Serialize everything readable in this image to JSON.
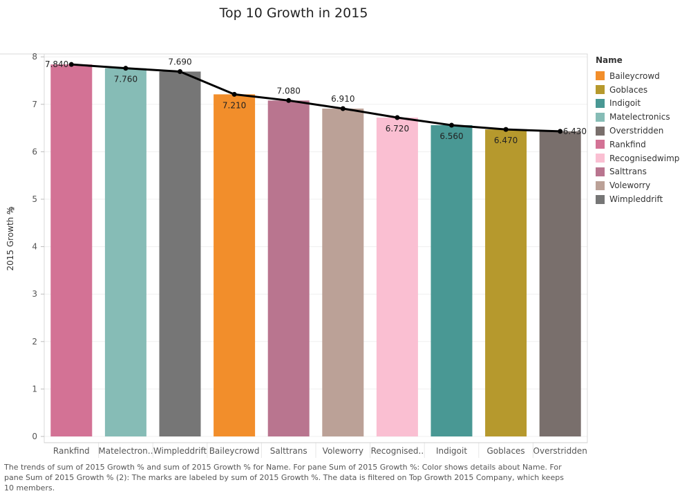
{
  "chart_data": {
    "type": "bar",
    "title": "Top 10 Growth in 2015",
    "ylabel": "2015 Growth %",
    "xlabel": "",
    "ylim": [
      0,
      8.3
    ],
    "yticks": [
      0,
      1,
      2,
      3,
      4,
      5,
      6,
      7,
      8
    ],
    "grid": true,
    "legend_placement": "right",
    "categories": [
      "Rankfind",
      "Matelectronics",
      "Wimpleddrift",
      "Baileycrowd",
      "Salttrans",
      "Voleworry",
      "Recognisedwimp",
      "Indigoit",
      "Goblaces",
      "Overstridden"
    ],
    "category_tick_labels": [
      "Rankfind",
      "Matelectron..",
      "Wimpleddrift",
      "Baileycrowd",
      "Salttrans",
      "Voleworry",
      "Recognised..",
      "Indigoit",
      "Goblaces",
      "Overstridden"
    ],
    "values": [
      7.84,
      7.76,
      7.69,
      7.21,
      7.08,
      6.91,
      6.72,
      6.56,
      6.47,
      6.43
    ],
    "data_labels": [
      "7.840",
      "7.760",
      "7.690",
      "7.210",
      "7.080",
      "6.910",
      "6.720",
      "6.560",
      "6.470",
      "6.430"
    ],
    "bar_colors": [
      "#d37295",
      "#86bcb6",
      "#767676",
      "#f28e2b",
      "#b9758f",
      "#bba197",
      "#fabfd2",
      "#499894",
      "#b6992d",
      "#796f6c"
    ],
    "line_series": {
      "values": [
        7.84,
        7.76,
        7.69,
        7.21,
        7.08,
        6.91,
        6.72,
        6.56,
        6.47,
        6.43
      ],
      "color": "#000000"
    },
    "legend": {
      "title": "Name",
      "items": [
        {
          "name": "Baileycrowd",
          "color": "#f28e2b"
        },
        {
          "name": "Goblaces",
          "color": "#b6992d"
        },
        {
          "name": "Indigoit",
          "color": "#499894"
        },
        {
          "name": "Matelectronics",
          "color": "#86bcb6"
        },
        {
          "name": "Overstridden",
          "color": "#796f6c"
        },
        {
          "name": "Rankfind",
          "color": "#d37295"
        },
        {
          "name": "Recognisedwimp",
          "color": "#fabfd2"
        },
        {
          "name": "Salttrans",
          "color": "#b9758f"
        },
        {
          "name": "Voleworry",
          "color": "#bba197"
        },
        {
          "name": "Wimpleddrift",
          "color": "#767676"
        }
      ]
    },
    "caption": "The trends of sum of 2015 Growth % and sum of 2015 Growth % for Name.  For pane Sum of 2015 Growth %:  Color shows details about Name.  For pane Sum of 2015 Growth % (2):  The marks are labeled by sum of 2015 Growth %. The data is filtered on Top Growth 2015 Company, which keeps 10 members."
  }
}
